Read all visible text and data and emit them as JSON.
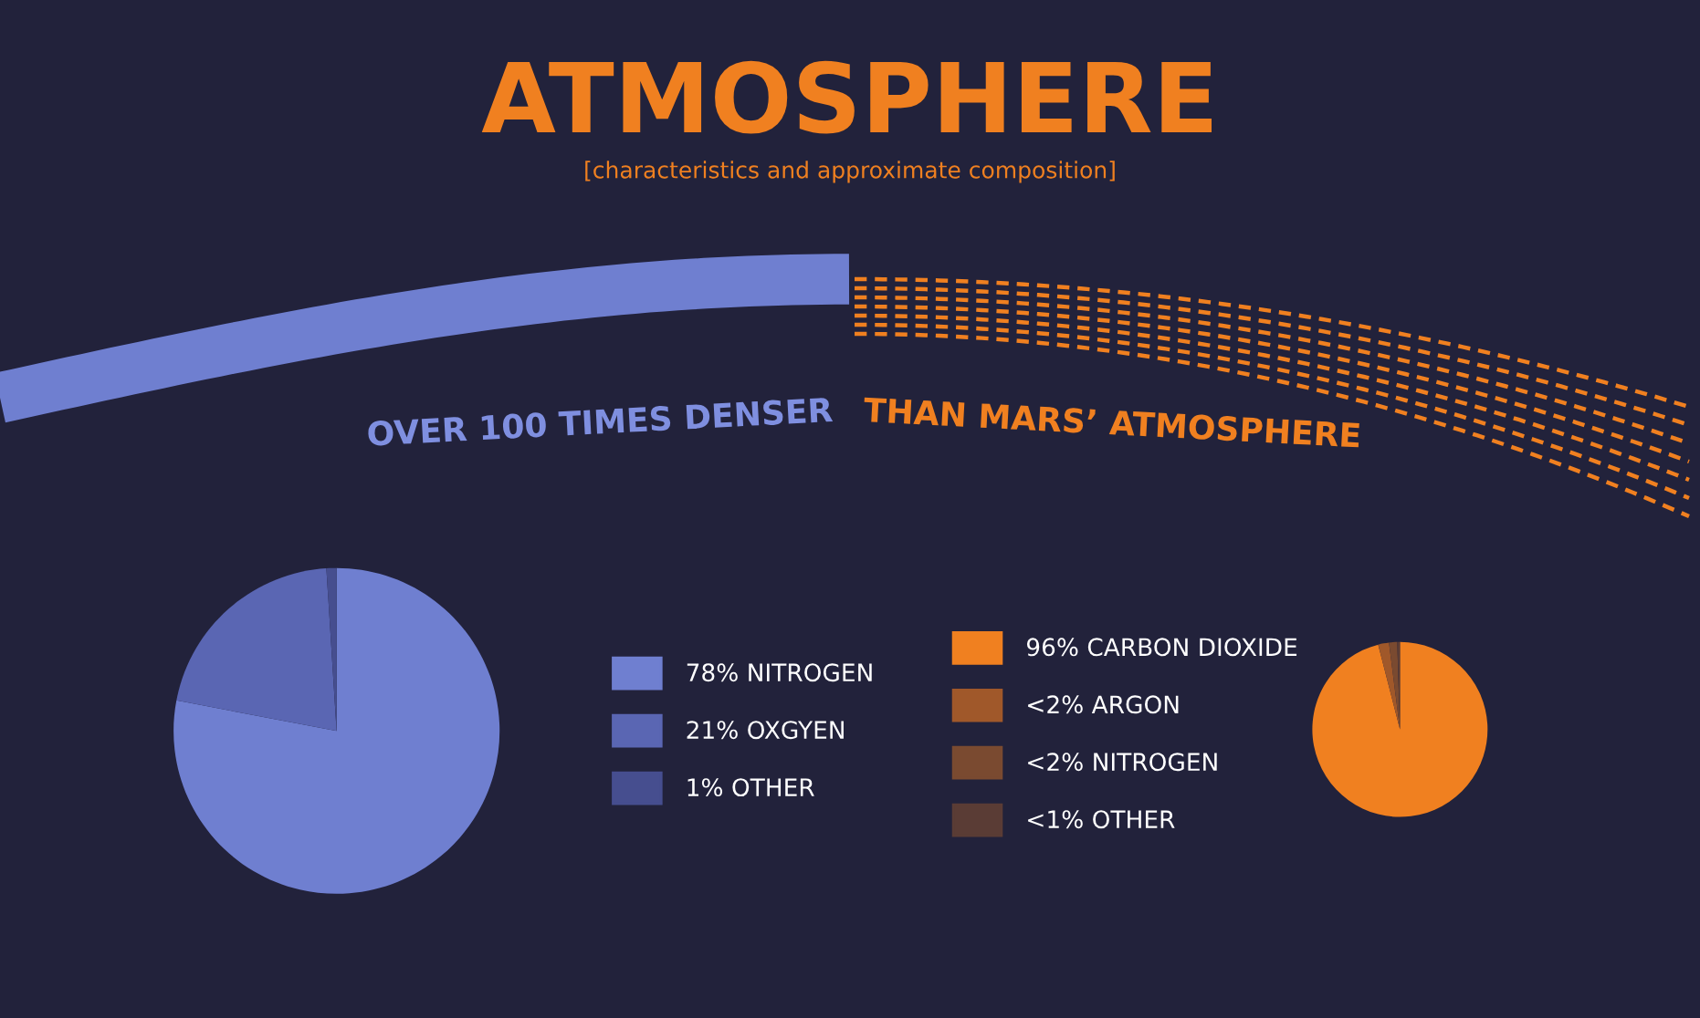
{
  "chart_data": [
    {
      "type": "pie",
      "title": "ATMOSPHERE",
      "subtitle": "[characteristics and approximate composition]",
      "annotations": [
        "OVER 100 TIMES DENSER",
        "THAN MARS’ ATMOSPHERE"
      ],
      "categories": [
        "78% NITROGEN",
        "21% OXGYEN",
        "1% OTHER"
      ],
      "values": [
        78,
        21,
        1
      ],
      "colors": [
        "#6f7fd0",
        "#5a66b3",
        "#464e8f"
      ],
      "legend": "right"
    },
    {
      "type": "pie",
      "categories": [
        "96% CARBON DIOXIDE",
        "<2% ARGON",
        "<2% NITROGEN",
        "<1% OTHER"
      ],
      "values": [
        96,
        2,
        1.5,
        0.5
      ],
      "colors": [
        "#f08020",
        "#a0582a",
        "#7a4a30",
        "#5a3c35"
      ],
      "legend": "left"
    }
  ]
}
